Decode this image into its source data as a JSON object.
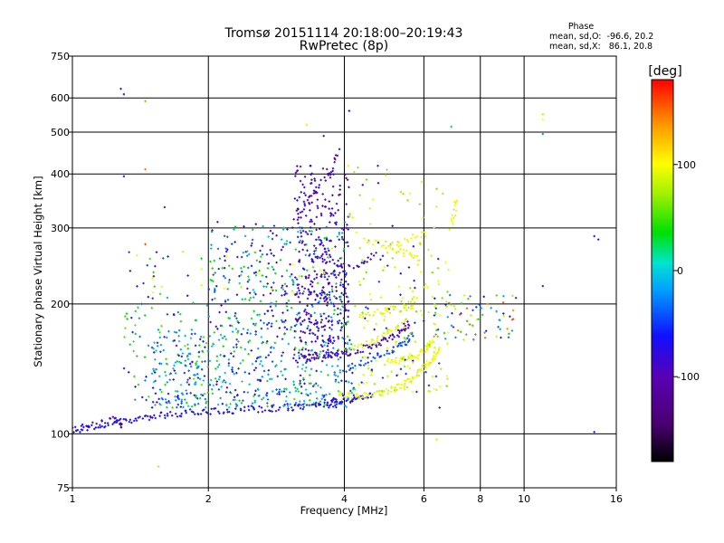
{
  "chart_data": {
    "type": "scatter",
    "title": "Tromsø 20151114 20:18:00–20:19:43",
    "subtitle": "RwPretec (8p)",
    "xlabel": "Frequency [MHz]",
    "ylabel": "Stationary phase Virtual Height [km]",
    "x_scale": "log",
    "y_scale": "log",
    "xlim": [
      1,
      16
    ],
    "ylim": [
      75,
      750
    ],
    "x_ticks": [
      1,
      2,
      4,
      6,
      8,
      10,
      16
    ],
    "x_tick_labels": [
      "1",
      "2",
      "4",
      "6",
      "8",
      "10",
      "16"
    ],
    "y_ticks": [
      75,
      100,
      200,
      300,
      400,
      500,
      600,
      750
    ],
    "y_tick_labels": [
      "75",
      "100",
      "200",
      "300",
      "400",
      "500",
      "600",
      "750"
    ],
    "grid": true,
    "phase_info": {
      "heading": "Phase",
      "line_o": "mean, sd,O:  -96.6, 20.2",
      "line_x": "mean, sd,X:   86.1, 20.8"
    },
    "colorbar": {
      "label": "[deg]",
      "range": [
        -180,
        180
      ],
      "ticks": [
        100,
        0,
        -100
      ],
      "tick_labels": [
        "100",
        "0",
        "-100"
      ],
      "colormap": "rainbow (black-purple-blue-cyan-green-yellow-red)"
    },
    "traces": [
      {
        "name": "",
        "phase": -105,
        "density": 16,
        "points": [
          [
            1.0,
            102
          ],
          [
            1.2,
            105
          ],
          [
            1.35,
            108
          ],
          [
            1.55,
            110
          ],
          [
            1.8,
            112
          ],
          [
            2.1,
            113
          ],
          [
            2.5,
            114
          ],
          [
            3.0,
            115
          ],
          [
            3.5,
            117
          ],
          [
            3.9,
            119
          ],
          [
            4.3,
            121
          ],
          [
            4.6,
            124
          ]
        ]
      },
      {
        "name": "",
        "phase": -110,
        "density": 10,
        "points": [
          [
            1.0,
            102
          ],
          [
            1.1,
            105
          ],
          [
            1.25,
            108
          ],
          [
            1.3,
            104
          ]
        ]
      },
      {
        "name": "",
        "phase": 90,
        "density": 14,
        "points": [
          [
            3.9,
            123
          ],
          [
            4.3,
            122
          ],
          [
            4.8,
            124
          ],
          [
            5.2,
            127
          ],
          [
            5.6,
            133
          ],
          [
            6.0,
            142
          ],
          [
            6.3,
            150
          ],
          [
            6.5,
            157
          ]
        ]
      },
      {
        "name": "",
        "phase": 92,
        "density": 12,
        "points": [
          [
            5.0,
            148
          ],
          [
            5.4,
            150
          ],
          [
            5.8,
            152
          ],
          [
            6.1,
            158
          ],
          [
            6.3,
            165
          ]
        ]
      },
      {
        "name": "",
        "phase": -120,
        "density": 14,
        "points": [
          [
            3.1,
            148
          ],
          [
            3.5,
            151
          ],
          [
            4.0,
            154
          ],
          [
            4.5,
            158
          ],
          [
            4.9,
            164
          ],
          [
            5.3,
            172
          ],
          [
            5.6,
            182
          ]
        ]
      },
      {
        "name": "",
        "phase": -85,
        "density": 12,
        "points": [
          [
            4.0,
            140
          ],
          [
            4.5,
            148
          ],
          [
            5.0,
            155
          ],
          [
            5.4,
            162
          ],
          [
            5.7,
            172
          ]
        ]
      },
      {
        "name": "",
        "phase": 88,
        "density": 12,
        "points": [
          [
            4.0,
            155
          ],
          [
            4.5,
            162
          ],
          [
            5.0,
            170
          ],
          [
            5.4,
            180
          ]
        ]
      },
      {
        "name": "",
        "phase": 85,
        "density": 11,
        "points": [
          [
            4.3,
            188
          ],
          [
            4.9,
            192
          ],
          [
            5.4,
            196
          ],
          [
            5.8,
            206
          ]
        ]
      },
      {
        "name": "",
        "phase": -115,
        "density": 10,
        "points": [
          [
            3.3,
            228
          ],
          [
            3.8,
            236
          ],
          [
            4.3,
            246
          ],
          [
            4.7,
            260
          ]
        ]
      },
      {
        "name": "",
        "phase": 95,
        "density": 10,
        "points": [
          [
            4.4,
            280
          ],
          [
            5.0,
            272
          ],
          [
            5.5,
            262
          ],
          [
            5.9,
            255
          ]
        ]
      },
      {
        "name": "",
        "phase": 100,
        "density": 8,
        "points": [
          [
            5.2,
            272
          ],
          [
            5.7,
            285
          ],
          [
            6.1,
            290
          ]
        ]
      },
      {
        "name": "",
        "phase": 95,
        "density": 7,
        "points": [
          [
            6.9,
            300
          ],
          [
            7.0,
            330
          ],
          [
            7.1,
            355
          ]
        ]
      },
      {
        "name": "",
        "phase": -120,
        "density": 10,
        "points": [
          [
            3.1,
            310
          ],
          [
            3.4,
            355
          ],
          [
            3.7,
            400
          ],
          [
            3.9,
            460
          ]
        ]
      }
    ],
    "clouds": [
      {
        "name": "",
        "count": 500,
        "xrange": [
          1.5,
          4.2
        ],
        "yrange": [
          115,
          175
        ],
        "phases": [
          -110,
          -90,
          -60,
          -40,
          30
        ]
      },
      {
        "name": "",
        "count": 340,
        "xrange": [
          2.0,
          4.1
        ],
        "yrange": [
          175,
          310
        ],
        "phases": [
          -120,
          -100,
          -80,
          -50,
          20
        ]
      },
      {
        "name": "",
        "count": 330,
        "xrange": [
          3.1,
          4.1
        ],
        "yrange": [
          150,
          420
        ],
        "phases": [
          -130,
          -120,
          -110
        ]
      },
      {
        "name": "",
        "count": 180,
        "xrange": [
          4.2,
          6.8
        ],
        "yrange": [
          125,
          290
        ],
        "phases": [
          85,
          90,
          100,
          -100,
          60
        ]
      },
      {
        "name": "",
        "count": 90,
        "xrange": [
          1.3,
          2.0
        ],
        "yrange": [
          115,
          210
        ],
        "phases": [
          -100,
          -70,
          40,
          20
        ]
      },
      {
        "name": "",
        "count": 70,
        "xrange": [
          6.3,
          9.6
        ],
        "yrange": [
          165,
          210
        ],
        "phases": [
          -90,
          -60,
          80,
          150,
          30
        ]
      },
      {
        "name": "",
        "count": 60,
        "xrange": [
          1.3,
          4.0
        ],
        "yrange": [
          210,
          270
        ],
        "phases": [
          -110,
          -90,
          90,
          30
        ]
      },
      {
        "name": "",
        "count": 30,
        "xrange": [
          4.0,
          6.8
        ],
        "yrange": [
          290,
          420
        ],
        "phases": [
          -110,
          60,
          100,
          120
        ]
      }
    ],
    "outliers": [
      {
        "x": 1.28,
        "y": 630,
        "phase": -100
      },
      {
        "x": 1.3,
        "y": 612,
        "phase": -100
      },
      {
        "x": 1.45,
        "y": 590,
        "phase": 140
      },
      {
        "x": 1.3,
        "y": 395,
        "phase": -110
      },
      {
        "x": 1.45,
        "y": 410,
        "phase": 150
      },
      {
        "x": 1.6,
        "y": 335,
        "phase": -110
      },
      {
        "x": 1.45,
        "y": 275,
        "phase": 160
      },
      {
        "x": 1.55,
        "y": 84,
        "phase": 120
      },
      {
        "x": 3.3,
        "y": 520,
        "phase": 110
      },
      {
        "x": 3.6,
        "y": 490,
        "phase": -110
      },
      {
        "x": 4.1,
        "y": 560,
        "phase": -100
      },
      {
        "x": 6.9,
        "y": 515,
        "phase": 10
      },
      {
        "x": 11.0,
        "y": 550,
        "phase": 80
      },
      {
        "x": 11.0,
        "y": 535,
        "phase": 100
      },
      {
        "x": 11.0,
        "y": 495,
        "phase": -70
      },
      {
        "x": 11.0,
        "y": 220,
        "phase": -100
      },
      {
        "x": 14.3,
        "y": 287,
        "phase": -110
      },
      {
        "x": 14.6,
        "y": 282,
        "phase": -105
      },
      {
        "x": 14.3,
        "y": 101,
        "phase": -105
      },
      {
        "x": 6.4,
        "y": 97,
        "phase": 90
      },
      {
        "x": 6.5,
        "y": 115,
        "phase": -110
      },
      {
        "x": 9.0,
        "y": 190,
        "phase": -100
      },
      {
        "x": 9.3,
        "y": 187,
        "phase": -105
      },
      {
        "x": 8.3,
        "y": 200,
        "phase": 140
      },
      {
        "x": 6.7,
        "y": 250,
        "phase": 100
      },
      {
        "x": 6.8,
        "y": 240,
        "phase": 90
      }
    ]
  }
}
